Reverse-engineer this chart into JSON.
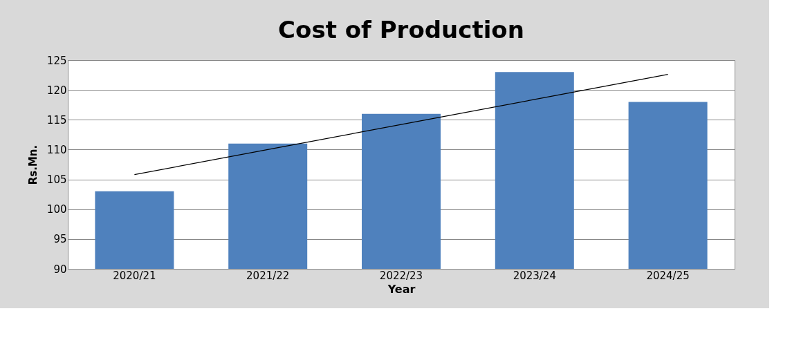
{
  "chart_data": {
    "type": "bar",
    "title": "Cost of Production",
    "xlabel": "Year",
    "ylabel": "Rs.Mn.",
    "categories": [
      "2020/21",
      "2021/22",
      "2022/23",
      "2023/24",
      "2024/25"
    ],
    "series": [
      {
        "color": "#4f81bd",
        "values": [
          103,
          111,
          116,
          123,
          118
        ]
      },
      {
        "type": "line",
        "line_style": "solid",
        "color": "#000000",
        "values": [
          105.8,
          110.0,
          114.2,
          118.4,
          122.6
        ]
      }
    ],
    "ylim": [
      90,
      125
    ],
    "yticks": [
      90,
      95,
      100,
      105,
      110,
      115,
      120,
      125
    ],
    "grid": "y"
  }
}
